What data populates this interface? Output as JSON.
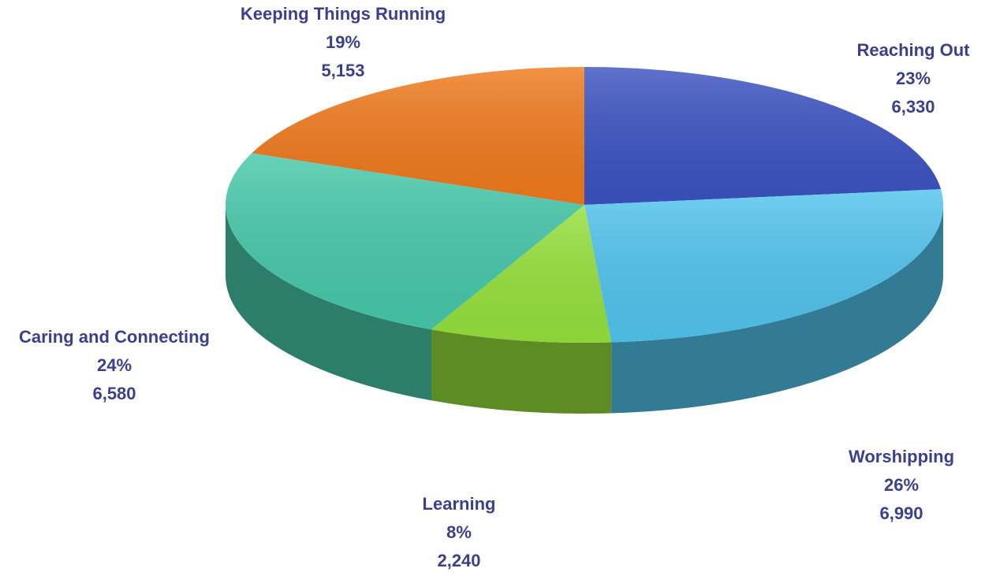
{
  "chart_data": {
    "type": "pie",
    "style": "3d",
    "title": "",
    "label_color": "#3b3f8c",
    "slices": [
      {
        "label": "Reaching Out",
        "percent": "23%",
        "value": 6330,
        "value_text": "6,330",
        "color": "#3b53c2"
      },
      {
        "label": "Worshipping",
        "percent": "26%",
        "value": 6990,
        "value_text": "6,990",
        "color": "#52c4ee"
      },
      {
        "label": "Learning",
        "percent": "8%",
        "value": 2240,
        "value_text": "2,240",
        "color": "#96e13c"
      },
      {
        "label": "Caring and Connecting",
        "percent": "24%",
        "value": 6580,
        "value_text": "6,580",
        "color": "#47c9aa"
      },
      {
        "label": "Keeping Things Running",
        "percent": "19%",
        "value": 5153,
        "value_text": "5,153",
        "color": "#f07a1d"
      }
    ]
  }
}
